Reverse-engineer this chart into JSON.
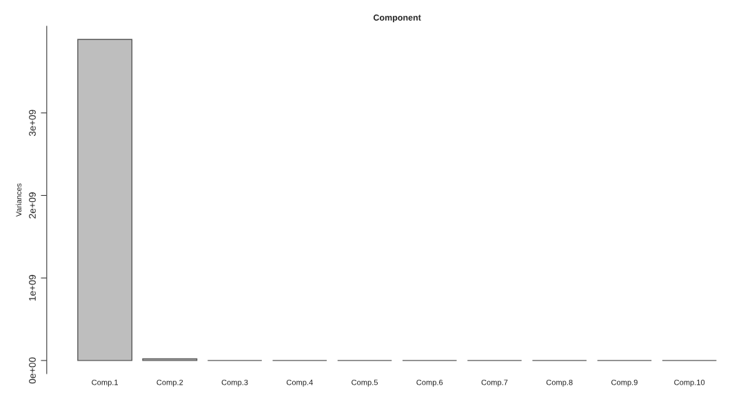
{
  "chart_data": {
    "type": "bar",
    "title": "Component",
    "ylabel": "Variances",
    "categories": [
      "Comp.1",
      "Comp.2",
      "Comp.3",
      "Comp.4",
      "Comp.5",
      "Comp.6",
      "Comp.7",
      "Comp.8",
      "Comp.9",
      "Comp.10"
    ],
    "values": [
      3890000000,
      20000000,
      0,
      0,
      0,
      0,
      0,
      0,
      0,
      0
    ],
    "color": "#bebebe",
    "ylim": [
      -160000000,
      4050000000
    ],
    "yticks": [
      {
        "value": 0,
        "label": "0e+00"
      },
      {
        "value": 1000000000,
        "label": "1e+09"
      },
      {
        "value": 2000000000,
        "label": "2e+09"
      },
      {
        "value": 3000000000,
        "label": "3e+09"
      }
    ],
    "grid": false,
    "legend": false
  }
}
